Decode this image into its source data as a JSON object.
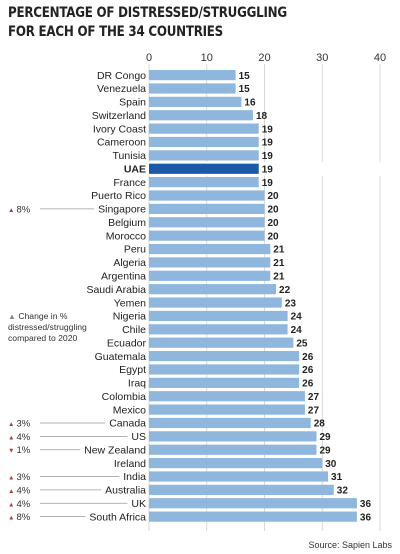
{
  "title_line1": "PERCENTAGE OF DISTRESSED/STRUGGLING",
  "title_line2": "FOR EACH OF THE 34 COUNTRIES",
  "source": "Source: Sapien Labs",
  "note": {
    "line1": "Change in %",
    "line2": "distressed/struggling",
    "line3": "compared to 2020"
  },
  "colors": {
    "bar": "#8fb7dd",
    "highlight": "#1a5aa7",
    "grid": "#d0d0d0",
    "leader": "#999999"
  },
  "chart_data": {
    "type": "bar",
    "orientation": "horizontal",
    "xlim": [
      0,
      40
    ],
    "xticks": [
      0,
      10,
      20,
      30,
      40
    ],
    "grid": true,
    "highlight": "UAE",
    "categories": [
      "DR Congo",
      "Venezuela",
      "Spain",
      "Switzerland",
      "Ivory Coast",
      "Cameroon",
      "Tunisia",
      "UAE",
      "France",
      "Puerto Rico",
      "Singapore",
      "Belgium",
      "Morocco",
      "Peru",
      "Algeria",
      "Argentina",
      "Saudi Arabia",
      "Yemen",
      "Nigeria",
      "Chile",
      "Ecuador",
      "Guatemala",
      "Egypt",
      "Iraq",
      "Colombia",
      "Mexico",
      "Canada",
      "US",
      "New Zealand",
      "Ireland",
      "India",
      "Australia",
      "UK",
      "South Africa"
    ],
    "values": [
      15,
      15,
      16,
      18,
      19,
      19,
      19,
      19,
      19,
      20,
      20,
      20,
      20,
      21,
      21,
      21,
      22,
      23,
      24,
      24,
      25,
      26,
      26,
      26,
      27,
      27,
      28,
      29,
      29,
      30,
      31,
      32,
      36,
      36
    ],
    "value_labels": [
      "15",
      "15",
      "16",
      "18",
      "19",
      "19",
      "19",
      "19",
      "19",
      "20",
      "20",
      "20",
      "20",
      "21",
      "21",
      "21",
      "22",
      "23",
      "24",
      "24",
      "25",
      "26",
      "26",
      "26",
      "27",
      "27",
      "28",
      "29",
      "29",
      "30",
      "31",
      "32",
      "36",
      "36"
    ],
    "annotations": [
      {
        "country": "Singapore",
        "symbol": "▲",
        "change": "8%"
      },
      {
        "country": "Canada",
        "symbol": "▲",
        "change": "3%"
      },
      {
        "country": "US",
        "symbol": "▲",
        "change": "4%"
      },
      {
        "country": "New Zealand",
        "symbol": "▼",
        "change": "1%"
      },
      {
        "country": "India",
        "symbol": "▲",
        "change": "3%"
      },
      {
        "country": "Australia",
        "symbol": "▲",
        "change": "4%"
      },
      {
        "country": "UK",
        "symbol": "▲",
        "change": "4%"
      },
      {
        "country": "South Africa",
        "symbol": "▲",
        "change": "8%"
      }
    ]
  }
}
